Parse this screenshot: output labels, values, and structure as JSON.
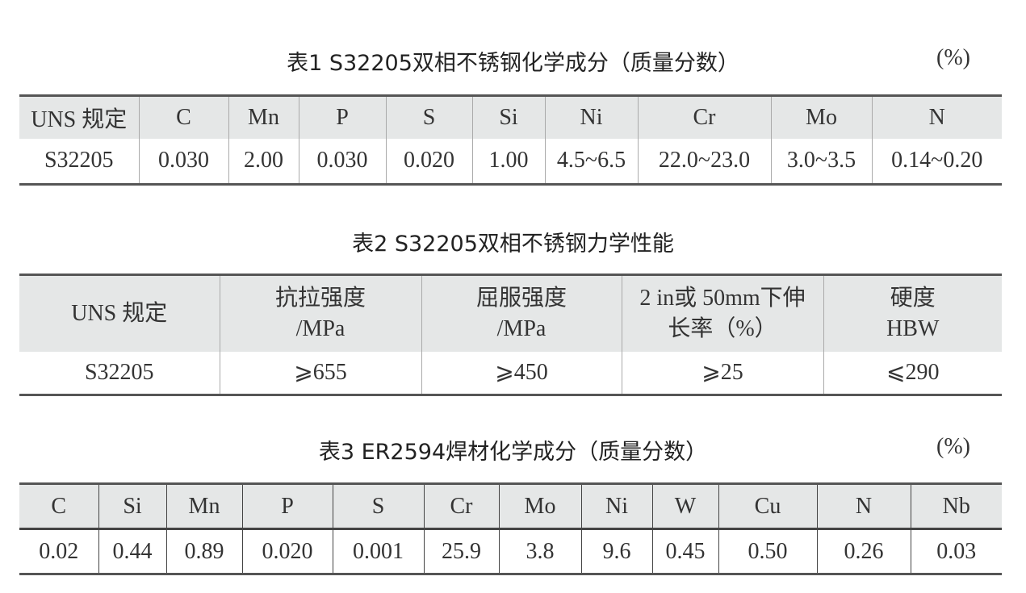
{
  "table1": {
    "title": "表1  S32205双相不锈钢化学成分（质量分数）",
    "unit": "(%)",
    "headers": [
      "UNS 规定",
      "C",
      "Mn",
      "P",
      "S",
      "Si",
      "Ni",
      "Cr",
      "Mo",
      "N"
    ],
    "row": [
      "S32205",
      "0.030",
      "2.00",
      "0.030",
      "0.020",
      "1.00",
      "4.5~6.5",
      "22.0~23.0",
      "3.0~3.5",
      "0.14~0.20"
    ]
  },
  "table2": {
    "title": "表2  S32205双相不锈钢力学性能",
    "headers": [
      [
        "UNS 规定",
        ""
      ],
      [
        "抗拉强度",
        "/MPa"
      ],
      [
        "屈服强度",
        "/MPa"
      ],
      [
        "2 in或 50mm下伸",
        "长率（%）"
      ],
      [
        "硬度",
        "HBW"
      ]
    ],
    "row": [
      "S32205",
      "⩾655",
      "⩾450",
      "⩾25",
      "⩽290"
    ]
  },
  "table3": {
    "title": "表3  ER2594焊材化学成分（质量分数）",
    "unit": "(%)",
    "headers": [
      "C",
      "Si",
      "Mn",
      "P",
      "S",
      "Cr",
      "Mo",
      "Ni",
      "W",
      "Cu",
      "N",
      "Nb"
    ],
    "row": [
      "0.02",
      "0.44",
      "0.89",
      "0.020",
      "0.001",
      "25.9",
      "3.8",
      "9.6",
      "0.45",
      "0.50",
      "0.26",
      "0.03"
    ]
  }
}
